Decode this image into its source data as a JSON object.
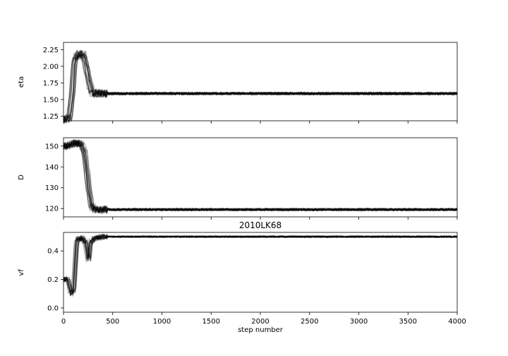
{
  "chart_data": [
    {
      "type": "line",
      "ylabel": "eta",
      "xlim": [
        0,
        4000
      ],
      "ylim": [
        1.18,
        2.36
      ],
      "yticks": [
        "1.25",
        "1.50",
        "1.75",
        "2.00",
        "2.25"
      ],
      "xticks_shown": false,
      "color": "#000000",
      "series_style": "many overlapping semi-transparent walker traces",
      "trace": [
        [
          0,
          1.2
        ],
        [
          60,
          1.22
        ],
        [
          90,
          1.6
        ],
        [
          110,
          2.1
        ],
        [
          150,
          2.18
        ],
        [
          200,
          2.18
        ],
        [
          230,
          2.0
        ],
        [
          260,
          1.75
        ],
        [
          290,
          1.6
        ],
        [
          350,
          1.59
        ],
        [
          4000,
          1.59
        ]
      ],
      "band": 0.02,
      "settled_value": 1.59
    },
    {
      "type": "line",
      "ylabel": "D",
      "xlim": [
        0,
        4000
      ],
      "ylim": [
        116,
        154
      ],
      "yticks": [
        "120",
        "130",
        "140",
        "150"
      ],
      "xticks_shown": false,
      "color": "#000000",
      "series_style": "many overlapping semi-transparent walker traces",
      "trace": [
        [
          0,
          150
        ],
        [
          80,
          150.5
        ],
        [
          110,
          151.5
        ],
        [
          180,
          151
        ],
        [
          210,
          147
        ],
        [
          240,
          137
        ],
        [
          260,
          128
        ],
        [
          280,
          122
        ],
        [
          310,
          119.5
        ],
        [
          4000,
          119.5
        ]
      ],
      "band": 0.6,
      "settled_value": 119.5
    },
    {
      "type": "line",
      "title": "2010LK68",
      "ylabel": "vf",
      "xlabel": "step number",
      "xlim": [
        0,
        4000
      ],
      "ylim": [
        -0.03,
        0.53
      ],
      "yticks": [
        "0.0",
        "0.2",
        "0.4"
      ],
      "xticks": [
        "0",
        "500",
        "1000",
        "1500",
        "2000",
        "2500",
        "3000",
        "3500",
        "4000"
      ],
      "color": "#000000",
      "series_style": "many overlapping semi-transparent walker traces",
      "trace": [
        [
          0,
          0.2
        ],
        [
          40,
          0.2
        ],
        [
          70,
          0.1
        ],
        [
          100,
          0.12
        ],
        [
          130,
          0.48
        ],
        [
          180,
          0.49
        ],
        [
          220,
          0.46
        ],
        [
          250,
          0.33
        ],
        [
          270,
          0.46
        ],
        [
          320,
          0.49
        ],
        [
          400,
          0.5
        ],
        [
          4000,
          0.5
        ]
      ],
      "band": 0.006,
      "settled_value": 0.5
    }
  ]
}
